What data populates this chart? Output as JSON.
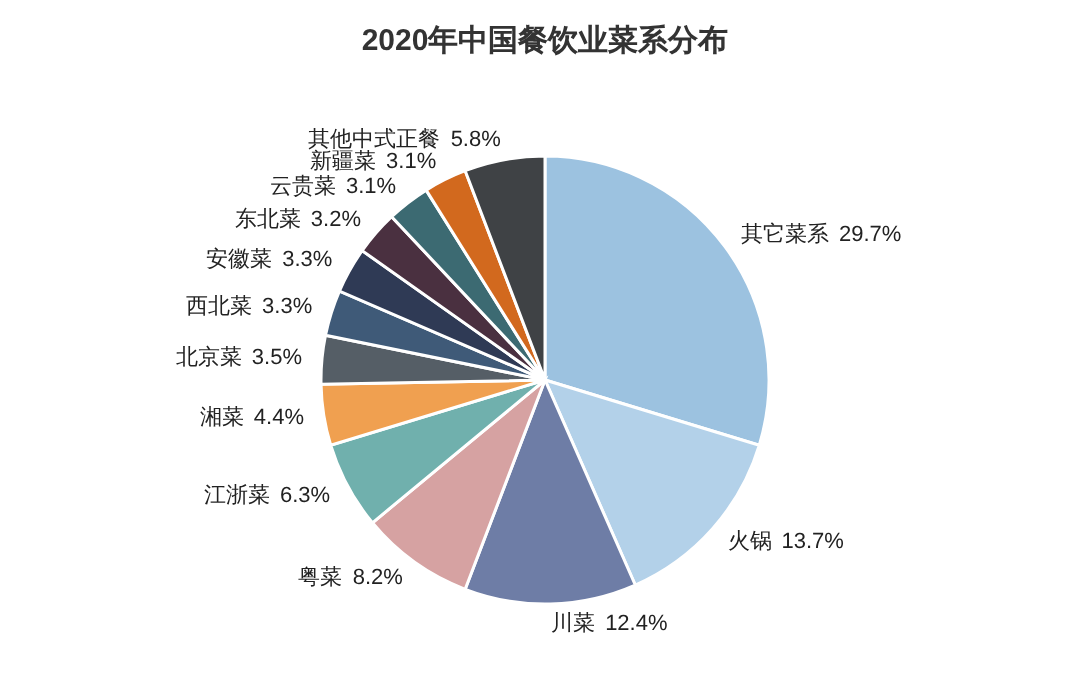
{
  "chart_data": {
    "type": "pie",
    "title": "2020年中国餐饮业菜系分布",
    "categories": [
      "其它菜系",
      "火锅",
      "川菜",
      "粤菜",
      "江浙菜",
      "湘菜",
      "北京菜",
      "西北菜",
      "安徽菜",
      "东北菜",
      "云贵菜",
      "新疆菜",
      "其他中式正餐"
    ],
    "values": [
      29.7,
      13.7,
      12.4,
      8.2,
      6.3,
      4.4,
      3.5,
      3.3,
      3.3,
      3.2,
      3.1,
      3.1,
      5.8
    ],
    "colors": [
      "#9cc2e0",
      "#b3d1e9",
      "#6e7da6",
      "#d6a2a2",
      "#70b0ad",
      "#f0a050",
      "#555e66",
      "#3f5a78",
      "#2f3a55",
      "#4a3040",
      "#3c6a72",
      "#d2691e",
      "#3f4245"
    ],
    "value_labels": [
      "29.7%",
      "13.7%",
      "12.4%",
      "8.2%",
      "6.3%",
      "4.4%",
      "3.5%",
      "3.3%",
      "3.3%",
      "3.2%",
      "3.1%",
      "3.1%",
      "5.8%"
    ]
  }
}
